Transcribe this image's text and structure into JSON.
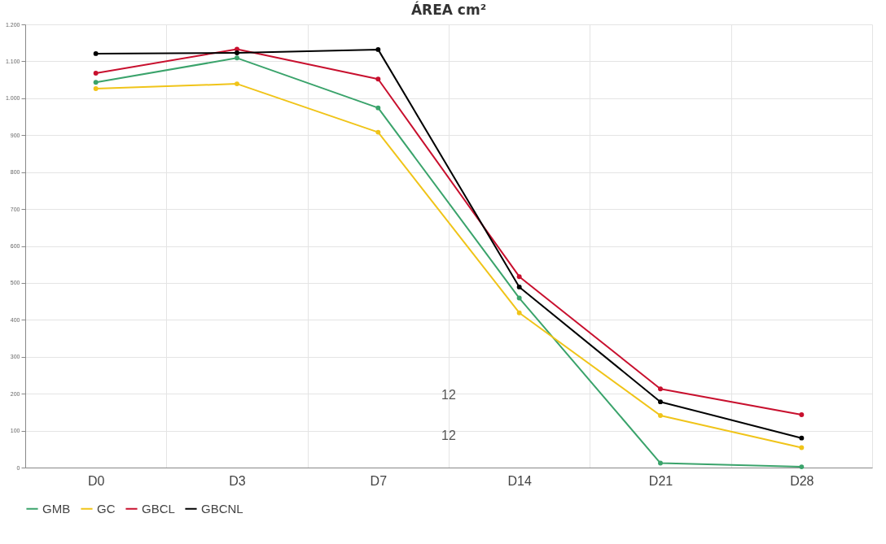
{
  "chart_data": {
    "type": "line",
    "title": "ÁREA cm²",
    "categories": [
      "D0",
      "D3",
      "D7",
      "D14",
      "D21",
      "D28"
    ],
    "series": [
      {
        "name": "GMB",
        "color": "#3aa36b",
        "values": [
          1043,
          1109,
          974,
          459,
          12,
          2
        ]
      },
      {
        "name": "GC",
        "color": "#f0c419",
        "values": [
          1026,
          1039,
          908,
          419,
          141,
          54
        ]
      },
      {
        "name": "GBCL",
        "color": "#c8102e",
        "values": [
          1068,
          1133,
          1052,
          517,
          213,
          143
        ]
      },
      {
        "name": "GBCNL",
        "color": "#000000",
        "values": [
          1121,
          1123,
          1132,
          489,
          178,
          80
        ]
      }
    ],
    "ylim": [
      0,
      1200
    ],
    "yticks": [
      0,
      100,
      200,
      300,
      400,
      500,
      600,
      700,
      800,
      900,
      {
        "value": 1000,
        "label": "1.000"
      },
      {
        "value": 1100,
        "label": "1.100"
      },
      {
        "value": 1200,
        "label": "1.200"
      }
    ],
    "annotations": [
      "12",
      "12"
    ],
    "grid": true,
    "legend": "bottom",
    "marker": "circle",
    "line_style": "solid"
  }
}
